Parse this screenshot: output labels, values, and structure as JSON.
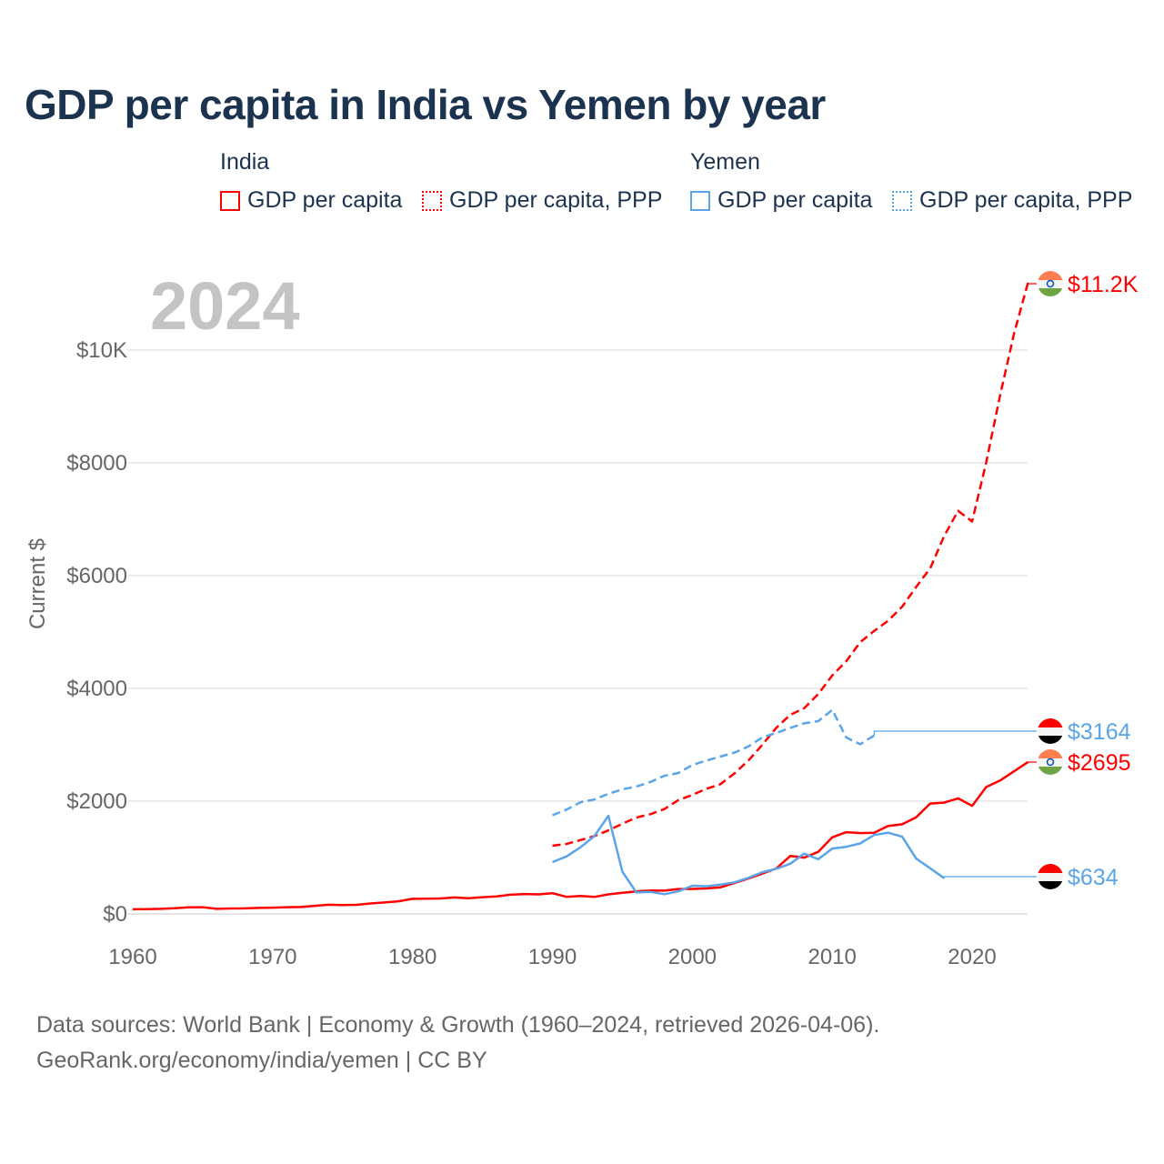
{
  "chart_data": {
    "type": "line",
    "title": "GDP per capita in India vs Yemen by year",
    "year_watermark": "2024",
    "ylabel": "Current $",
    "xlabel": "",
    "xlim": [
      1960,
      2024
    ],
    "ylim": [
      0,
      11500
    ],
    "grid": true,
    "x_ticks": [
      {
        "value": 1960,
        "label": "1960"
      },
      {
        "value": 1970,
        "label": "1970"
      },
      {
        "value": 1980,
        "label": "1980"
      },
      {
        "value": 1990,
        "label": "1990"
      },
      {
        "value": 2000,
        "label": "2000"
      },
      {
        "value": 2010,
        "label": "2010"
      },
      {
        "value": 2020,
        "label": "2020"
      }
    ],
    "y_ticks": [
      {
        "value": 0,
        "label": "$0"
      },
      {
        "value": 2000,
        "label": "$2000"
      },
      {
        "value": 4000,
        "label": "$4000"
      },
      {
        "value": 6000,
        "label": "$6000"
      },
      {
        "value": 8000,
        "label": "$8000"
      },
      {
        "value": 10000,
        "label": "$10K"
      }
    ],
    "legend": {
      "placement": "top",
      "groups": [
        {
          "name": "India",
          "items": [
            {
              "label": "GDP per capita",
              "style": "solid",
              "color": "#ff0000"
            },
            {
              "label": "GDP per capita, PPP",
              "style": "dotted",
              "color": "#ff0000"
            }
          ]
        },
        {
          "name": "Yemen",
          "items": [
            {
              "label": "GDP per capita",
              "style": "solid",
              "color": "#5aa5e8"
            },
            {
              "label": "GDP per capita, PPP",
              "style": "dotted",
              "color": "#5aa5e8"
            }
          ]
        }
      ]
    },
    "series": [
      {
        "name": "India GDP per capita, PPP",
        "country": "india",
        "color": "#ff0000",
        "dash": true,
        "end_label": "$11.2K",
        "end_value": 11200,
        "x0": 1990,
        "values": [
          1210,
          1240,
          1310,
          1380,
          1480,
          1600,
          1710,
          1770,
          1860,
          2020,
          2110,
          2220,
          2300,
          2490,
          2720,
          3000,
          3300,
          3530,
          3650,
          3900,
          4230,
          4480,
          4820,
          5020,
          5200,
          5450,
          5800,
          6130,
          6700,
          7150,
          6960,
          8000,
          9200,
          10300,
          11200
        ]
      },
      {
        "name": "Yemen GDP per capita, PPP",
        "country": "yemen",
        "color": "#5aa5e8",
        "dash": true,
        "end_label": "$3164",
        "end_value": 3164,
        "x0": 1990,
        "values": [
          1750,
          1850,
          1980,
          2030,
          2130,
          2210,
          2260,
          2340,
          2450,
          2500,
          2640,
          2720,
          2790,
          2860,
          2970,
          3130,
          3210,
          3300,
          3380,
          3420,
          3620,
          3130,
          3010,
          3164
        ]
      },
      {
        "name": "India GDP per capita",
        "country": "india",
        "color": "#ff0000",
        "dash": false,
        "end_label": "$2695",
        "end_value": 2695,
        "x0": 1960,
        "values": [
          82,
          85,
          90,
          101,
          116,
          119,
          90,
          96,
          99,
          107,
          112,
          119,
          123,
          143,
          163,
          158,
          161,
          186,
          204,
          224,
          267,
          271,
          275,
          292,
          277,
          296,
          310,
          340,
          354,
          347,
          368,
          303,
          317,
          301,
          346,
          374,
          400,
          415,
          413,
          442,
          443,
          452,
          471,
          547,
          628,
          715,
          807,
          1028,
          999,
          1102,
          1358,
          1450,
          1434,
          1438,
          1560,
          1590,
          1714,
          1958,
          1974,
          2050,
          1916,
          2250,
          2366,
          2530,
          2695
        ]
      },
      {
        "name": "Yemen GDP per capita",
        "country": "yemen",
        "color": "#5aa5e8",
        "dash": false,
        "end_label": "$634",
        "end_value": 634,
        "x0": 1990,
        "values": [
          920,
          1020,
          1180,
          1380,
          1740,
          750,
          380,
          390,
          350,
          400,
          500,
          490,
          520,
          560,
          640,
          740,
          800,
          890,
          1070,
          970,
          1160,
          1190,
          1250,
          1400,
          1440,
          1370,
          980,
          810,
          634
        ]
      }
    ]
  },
  "source": {
    "line1": "Data sources: World Bank | Economy & Growth (1960–2024, retrieved 2026-04-06).",
    "line2": "GeoRank.org/economy/india/yemen | CC BY"
  }
}
